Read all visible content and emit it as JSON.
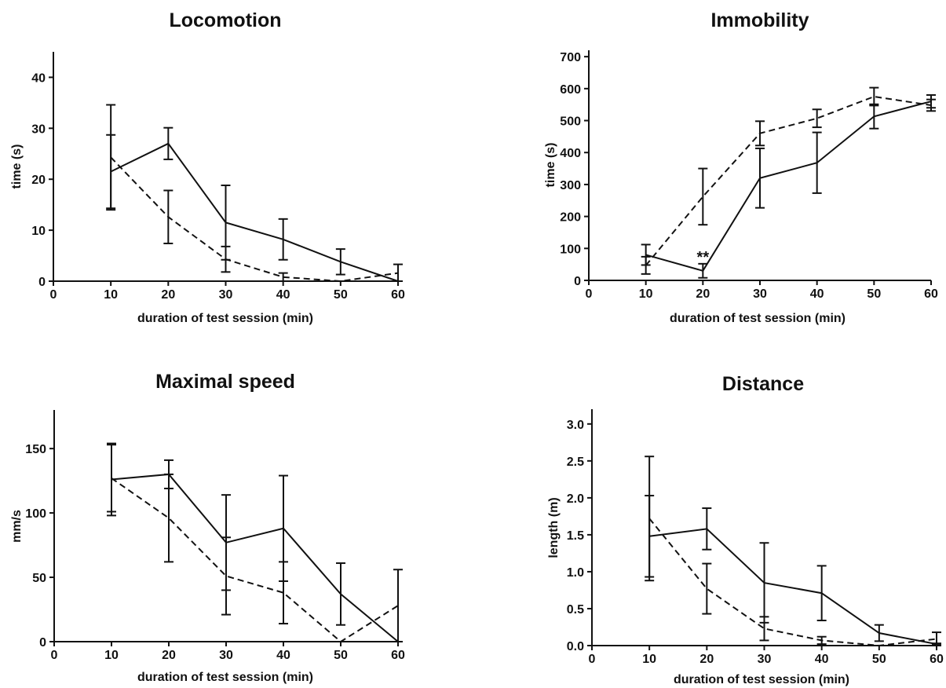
{
  "chart_data": [
    {
      "type": "line",
      "title": "Locomotion",
      "xlabel": "duration of test session (min)",
      "ylabel": "time (s)",
      "xlim": [
        0,
        60
      ],
      "ylim": [
        0,
        45
      ],
      "x_ticks": [
        0,
        10,
        20,
        30,
        40,
        50,
        60
      ],
      "y_ticks": [
        0,
        10,
        20,
        30,
        40
      ],
      "x_tick_labels": [
        "0",
        "10",
        "20",
        "30",
        "40",
        "50",
        "60"
      ],
      "y_tick_labels": [
        "0",
        "10",
        "20",
        "30",
        "40"
      ],
      "series": [
        {
          "style": "solid",
          "x": [
            10,
            20,
            30,
            40,
            50,
            60
          ],
          "values": [
            21.5,
            27,
            11.5,
            8.2,
            3.8,
            0
          ],
          "errors": [
            7.2,
            3.1,
            7.3,
            4.0,
            2.5,
            0
          ]
        },
        {
          "style": "dashed",
          "x": [
            10,
            20,
            30,
            40,
            50,
            60
          ],
          "values": [
            24.3,
            12.6,
            4.3,
            0.8,
            0,
            1.6
          ],
          "errors": [
            10.3,
            5.2,
            2.5,
            0.8,
            0,
            1.7
          ]
        }
      ],
      "annotations": []
    },
    {
      "type": "line",
      "title": "Immobility",
      "xlabel": "duration of test session (min)",
      "ylabel": "time (s)",
      "xlim": [
        0,
        60
      ],
      "ylim": [
        0,
        720
      ],
      "x_ticks": [
        0,
        10,
        20,
        30,
        40,
        50,
        60
      ],
      "y_ticks": [
        0,
        100,
        200,
        300,
        400,
        500,
        600,
        700
      ],
      "x_tick_labels": [
        "0",
        "10",
        "20",
        "30",
        "40",
        "50",
        "60"
      ],
      "y_tick_labels": [
        "0",
        "100",
        "200",
        "300",
        "400",
        "500",
        "600",
        "700"
      ],
      "series": [
        {
          "style": "solid",
          "x": [
            10,
            20,
            30,
            40,
            50,
            60
          ],
          "values": [
            80,
            30,
            320,
            368,
            513,
            560
          ],
          "errors": [
            32,
            22,
            93,
            95,
            38,
            20
          ]
        },
        {
          "style": "dashed",
          "x": [
            10,
            20,
            30,
            40,
            50,
            60
          ],
          "values": [
            47,
            262,
            460,
            507,
            575,
            548
          ],
          "errors": [
            27,
            88,
            38,
            28,
            28,
            18
          ]
        }
      ],
      "annotations": [
        {
          "text": "**",
          "x": 20,
          "y": 56
        }
      ]
    },
    {
      "type": "line",
      "title": "Maximal speed",
      "xlabel": "duration of test session (min)",
      "ylabel": "mm/s",
      "xlim": [
        0,
        60
      ],
      "ylim": [
        0,
        180
      ],
      "x_ticks": [
        0,
        10,
        20,
        30,
        40,
        50,
        60
      ],
      "y_ticks": [
        0,
        50,
        100,
        150
      ],
      "x_tick_labels": [
        "0",
        "10",
        "20",
        "30",
        "40",
        "50",
        "60"
      ],
      "y_tick_labels": [
        "0",
        "50",
        "100",
        "150"
      ],
      "series": [
        {
          "style": "solid",
          "x": [
            10,
            20,
            30,
            40,
            50,
            60
          ],
          "values": [
            126,
            130,
            77,
            88,
            37,
            0
          ],
          "errors": [
            28,
            11,
            37,
            41,
            24,
            0
          ]
        },
        {
          "style": "dashed",
          "x": [
            10,
            20,
            30,
            40,
            50,
            60
          ],
          "values": [
            127,
            96,
            51,
            38,
            0,
            28
          ],
          "errors": [
            26,
            34,
            30,
            24,
            0,
            28
          ]
        }
      ],
      "annotations": []
    },
    {
      "type": "line",
      "title": "Distance",
      "xlabel": "duration of test session (min)",
      "ylabel": "length (m)",
      "xlim": [
        0,
        60
      ],
      "ylim": [
        0,
        3.2
      ],
      "x_ticks": [
        0,
        10,
        20,
        30,
        40,
        50,
        60
      ],
      "y_ticks": [
        0,
        0.5,
        1,
        1.5,
        2,
        2.5,
        3
      ],
      "x_tick_labels": [
        "0",
        "10",
        "20",
        "30",
        "40",
        "50",
        "60"
      ],
      "y_tick_labels": [
        "0.0",
        "0.5",
        "1.0",
        "1.5",
        "2.0",
        "2.5",
        "3.0"
      ],
      "series": [
        {
          "style": "solid",
          "x": [
            10,
            20,
            30,
            40,
            50,
            60
          ],
          "values": [
            1.48,
            1.58,
            0.85,
            0.71,
            0.17,
            0.02
          ],
          "errors": [
            0.55,
            0.28,
            0.54,
            0.37,
            0.11,
            0.01
          ]
        },
        {
          "style": "dashed",
          "x": [
            10,
            20,
            30,
            40,
            50,
            60
          ],
          "values": [
            1.72,
            0.77,
            0.23,
            0.07,
            0,
            0.09
          ],
          "errors": [
            0.84,
            0.34,
            0.16,
            0.05,
            0,
            0.09
          ]
        }
      ],
      "annotations": []
    }
  ]
}
